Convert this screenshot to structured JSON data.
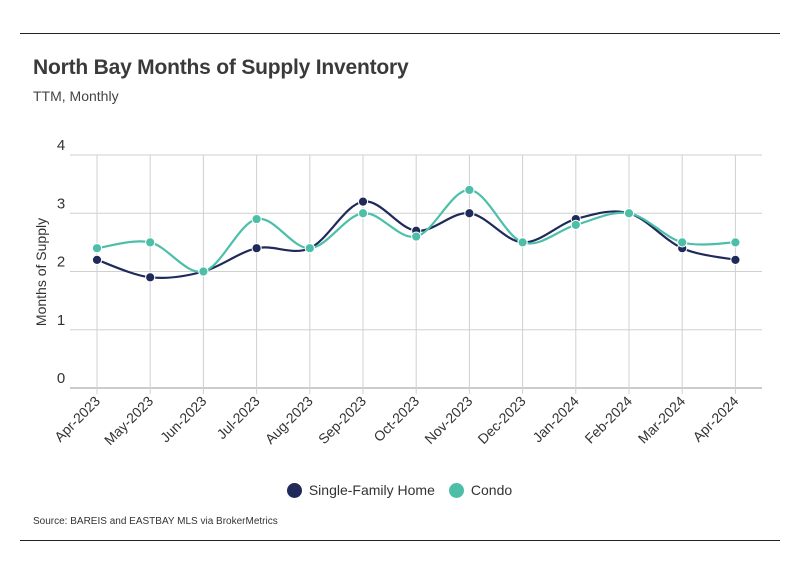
{
  "header": {
    "title": "North Bay Months of Supply Inventory",
    "subtitle": "TTM, Monthly"
  },
  "footer": {
    "source": "Source:  BAREIS and EASTBAY MLS via BrokerMetrics"
  },
  "colors": {
    "single_family": "#1f2a5a",
    "condo": "#4dbfa8",
    "grid": "#d0d0d0",
    "axis": "#999999"
  },
  "chart_data": {
    "type": "line",
    "smooth": true,
    "categories": [
      "Apr-2023",
      "May-2023",
      "Jun-2023",
      "Jul-2023",
      "Aug-2023",
      "Sep-2023",
      "Oct-2023",
      "Nov-2023",
      "Dec-2023",
      "Jan-2024",
      "Feb-2024",
      "Mar-2024",
      "Apr-2024"
    ],
    "series": [
      {
        "name": "Single-Family Home",
        "values": [
          2.2,
          1.9,
          2.0,
          2.4,
          2.4,
          3.2,
          2.7,
          3.0,
          2.5,
          2.9,
          3.0,
          2.4,
          2.2
        ]
      },
      {
        "name": "Condo",
        "values": [
          2.4,
          2.5,
          2.0,
          2.9,
          2.4,
          3.0,
          2.6,
          3.4,
          2.5,
          2.8,
          3.0,
          2.5,
          2.5
        ]
      }
    ],
    "title": "North Bay Months of Supply Inventory",
    "subtitle": "TTM, Monthly",
    "xlabel": "",
    "ylabel": "Months of Supply",
    "ylim": [
      0,
      4
    ],
    "yticks": [
      "0",
      "1",
      "2",
      "3",
      "4"
    ],
    "grid": true,
    "legend": "bottom-center"
  }
}
